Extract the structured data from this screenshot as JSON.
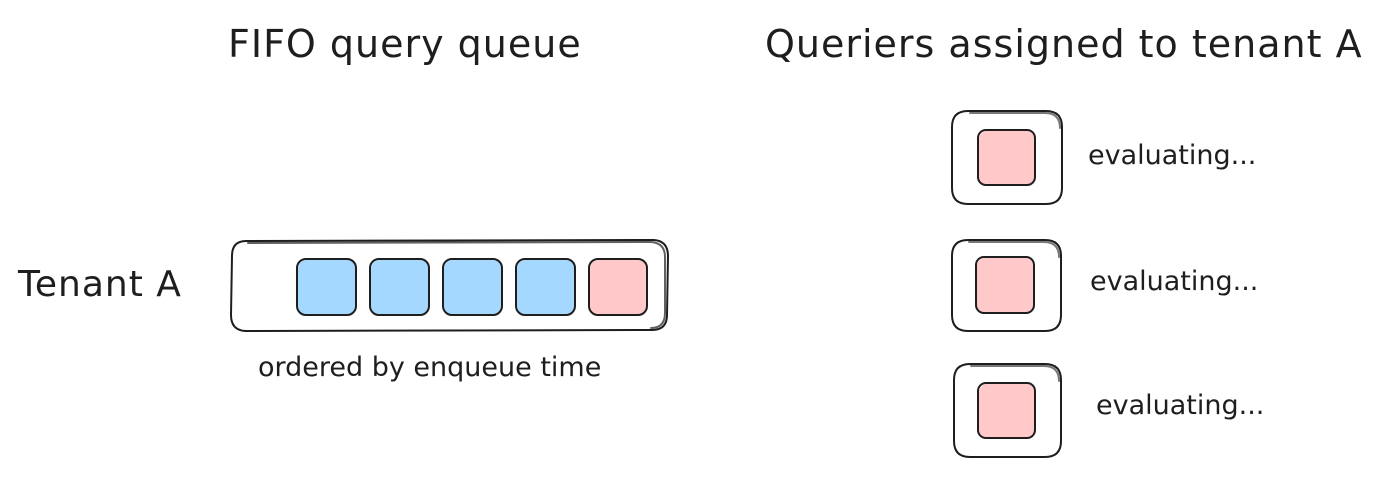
{
  "queue": {
    "heading": "FIFO query queue",
    "tenant_label": "Tenant A",
    "caption": "ordered by enqueue time",
    "items": [
      {
        "kind": "waiting",
        "color": "#a5d8ff"
      },
      {
        "kind": "waiting",
        "color": "#a5d8ff"
      },
      {
        "kind": "waiting",
        "color": "#a5d8ff"
      },
      {
        "kind": "waiting",
        "color": "#a5d8ff"
      },
      {
        "kind": "evaluating",
        "color": "#ffc9c9"
      }
    ]
  },
  "queriers": {
    "heading": "Queriers assigned to tenant A",
    "items": [
      {
        "status": "evaluating...",
        "color": "#ffc9c9"
      },
      {
        "status": "evaluating...",
        "color": "#ffc9c9"
      },
      {
        "status": "evaluating...",
        "color": "#ffc9c9"
      }
    ]
  },
  "colors": {
    "stroke": "#1e1e1e",
    "waiting_query": "#a5d8ff",
    "active_query": "#ffc9c9",
    "background": "#ffffff"
  }
}
